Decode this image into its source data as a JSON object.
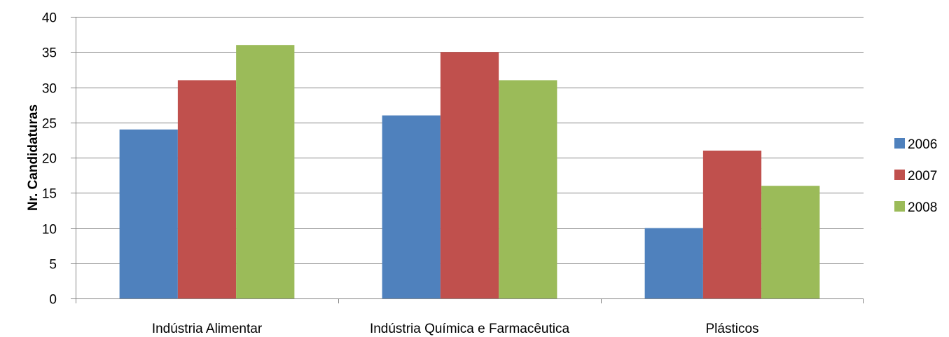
{
  "chart_data": {
    "type": "bar",
    "title": "",
    "xlabel": "",
    "ylabel": "Nr. Candidaturas",
    "ylim": [
      0,
      40
    ],
    "yticks": [
      0,
      5,
      10,
      15,
      20,
      25,
      30,
      35,
      40
    ],
    "categories": [
      "Indústria Alimentar",
      "Indústria Química e Farmacêutica",
      "Plásticos"
    ],
    "series": [
      {
        "name": "2006",
        "color": "#4F81BD",
        "values": [
          24,
          26,
          10
        ]
      },
      {
        "name": "2007",
        "color": "#C0504D",
        "values": [
          31,
          35,
          21
        ]
      },
      {
        "name": "2008",
        "color": "#9BBB59",
        "values": [
          36,
          31,
          16
        ]
      }
    ],
    "grid": true,
    "legend_position": "right"
  }
}
